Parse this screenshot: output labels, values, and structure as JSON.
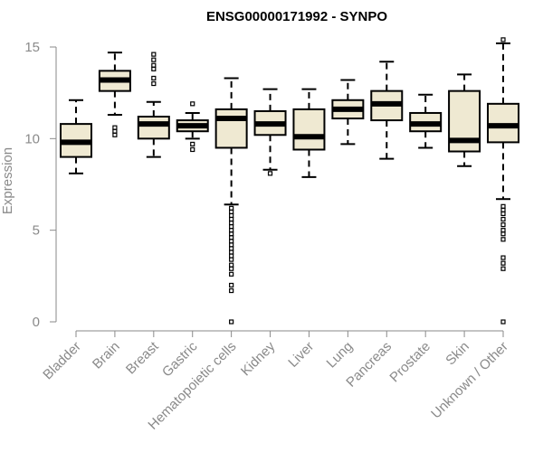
{
  "chart_data": {
    "type": "boxplot",
    "title": "ENSG00000171992 - SYNPO",
    "xlabel": "",
    "ylabel": "Expression",
    "ylim": [
      0,
      15
    ],
    "yticks": [
      0,
      5,
      10,
      15
    ],
    "grid": false,
    "colors": {
      "box_fill": "#efe9d2",
      "stroke": "#000000",
      "axis": "#8a8a8a"
    },
    "categories": [
      "Bladder",
      "Brain",
      "Breast",
      "Gastric",
      "Hematopoietic cells",
      "Kidney",
      "Liver",
      "Lung",
      "Pancreas",
      "Prostate",
      "Skin",
      "Unknown / Other"
    ],
    "boxes": [
      {
        "q1": 9.0,
        "median": 9.8,
        "q3": 10.8,
        "whisker_low": 8.1,
        "whisker_high": 12.1,
        "outliers": []
      },
      {
        "q1": 12.6,
        "median": 13.2,
        "q3": 13.7,
        "whisker_low": 11.3,
        "whisker_high": 14.7,
        "outliers": [
          10.2,
          10.4,
          10.6
        ]
      },
      {
        "q1": 10.0,
        "median": 10.8,
        "q3": 11.2,
        "whisker_low": 9.0,
        "whisker_high": 12.0,
        "outliers": [
          13.0,
          13.3,
          13.8,
          14.0,
          14.3,
          14.6
        ]
      },
      {
        "q1": 10.4,
        "median": 10.7,
        "q3": 11.0,
        "whisker_low": 10.0,
        "whisker_high": 11.4,
        "outliers": [
          9.4,
          9.7,
          11.9
        ]
      },
      {
        "q1": 9.5,
        "median": 11.1,
        "q3": 11.6,
        "whisker_low": 6.4,
        "whisker_high": 13.3,
        "outliers": [
          0.0,
          1.7,
          2.0,
          2.6,
          2.9,
          3.1,
          3.4,
          3.6,
          3.8,
          4.0,
          4.2,
          4.4,
          4.6,
          4.8,
          5.0,
          5.2,
          5.4,
          5.6,
          5.8,
          6.0,
          6.2
        ]
      },
      {
        "q1": 10.2,
        "median": 10.8,
        "q3": 11.5,
        "whisker_low": 8.3,
        "whisker_high": 12.7,
        "outliers": [
          8.1
        ]
      },
      {
        "q1": 9.4,
        "median": 10.1,
        "q3": 11.6,
        "whisker_low": 7.9,
        "whisker_high": 12.7,
        "outliers": []
      },
      {
        "q1": 11.1,
        "median": 11.6,
        "q3": 12.1,
        "whisker_low": 9.7,
        "whisker_high": 13.2,
        "outliers": []
      },
      {
        "q1": 11.0,
        "median": 11.9,
        "q3": 12.6,
        "whisker_low": 8.9,
        "whisker_high": 14.2,
        "outliers": []
      },
      {
        "q1": 10.4,
        "median": 10.8,
        "q3": 11.4,
        "whisker_low": 9.5,
        "whisker_high": 12.4,
        "outliers": []
      },
      {
        "q1": 9.3,
        "median": 9.9,
        "q3": 12.6,
        "whisker_low": 8.5,
        "whisker_high": 13.5,
        "outliers": []
      },
      {
        "q1": 9.8,
        "median": 10.7,
        "q3": 11.9,
        "whisker_low": 6.7,
        "whisker_high": 15.2,
        "outliers": [
          0.0,
          2.9,
          3.2,
          3.5,
          4.5,
          4.8,
          5.0,
          5.3,
          5.6,
          5.9,
          6.1,
          6.3,
          15.4
        ]
      }
    ]
  }
}
